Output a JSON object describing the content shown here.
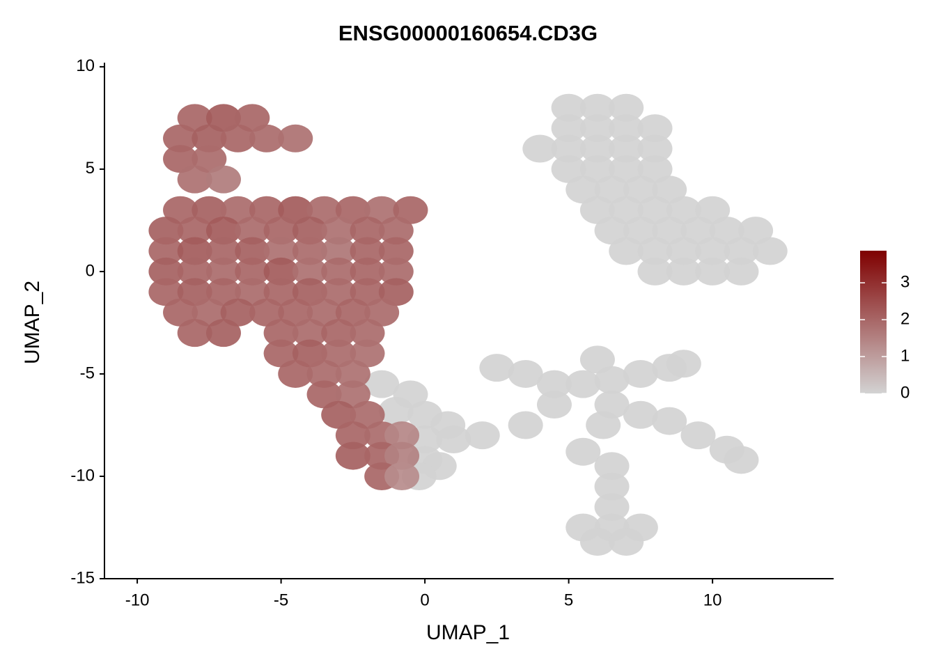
{
  "chart_data": {
    "type": "scatter",
    "title": "ENSG00000160654.CD3G",
    "xlabel": "UMAP_1",
    "ylabel": "UMAP_2",
    "xlim": [
      -11.14,
      14.21
    ],
    "ylim": [
      -15,
      10.2
    ],
    "xticks": [
      -10,
      -5,
      0,
      5,
      10
    ],
    "yticks": [
      -15,
      -10,
      -5,
      0,
      5,
      10
    ],
    "colorbar": {
      "lim": [
        0,
        3.87
      ],
      "ticks": [
        0,
        1,
        2,
        3
      ],
      "colors": [
        "#d3d3d3",
        "#7f0000"
      ]
    },
    "x": [
      5,
      6,
      7,
      5,
      6,
      7,
      8,
      4,
      5,
      6,
      7,
      8,
      5,
      6,
      7,
      8,
      5.5,
      6.5,
      7.5,
      8.5,
      6,
      7,
      8,
      9,
      10,
      6.5,
      7.5,
      8.5,
      9.5,
      10.5,
      11.5,
      7,
      8,
      9,
      10,
      11,
      12,
      8,
      9,
      10,
      11,
      5.5,
      6.5,
      7.5,
      6,
      7,
      6.5,
      6.5,
      6.5,
      2.5,
      3.5,
      4.5,
      5.5,
      6.5,
      7.5,
      8.5,
      9,
      6,
      6.5,
      6.2,
      7.5,
      8.5,
      9.5,
      10.5,
      11,
      4.5,
      3.5,
      2,
      5.5,
      -1.5,
      -0.5,
      -1,
      0,
      0.8,
      0,
      1,
      0,
      0.5,
      -0.2,
      -8,
      -7,
      -6,
      -8.5,
      -7.5,
      -6.5,
      -5.5,
      -4.5,
      -8.5,
      -7.5,
      -8,
      -7,
      -8.5,
      -7.5,
      -6.5,
      -5.5,
      -4.5,
      -3.5,
      -2.5,
      -1.5,
      -0.5,
      -9,
      -8,
      -7,
      -6,
      -5,
      -4,
      -3,
      -2,
      -1,
      -9,
      -8,
      -7,
      -6,
      -5,
      -4,
      -3,
      -2,
      -1,
      -9,
      -8,
      -7,
      -6,
      -5,
      -4,
      -3,
      -2,
      -1,
      -9,
      -8,
      -7,
      -6,
      -5,
      -4,
      -3,
      -2,
      -1,
      -8.5,
      -7.5,
      -6.5,
      -5.5,
      -4.5,
      -3.5,
      -2.5,
      -1.5,
      -8,
      -7,
      -5,
      -4,
      -3,
      -2,
      -5,
      -4,
      -3,
      -2,
      -4.5,
      -3.5,
      -2.5,
      -3.5,
      -2.5,
      -3,
      -2,
      -2.5,
      -1.5,
      -0.8,
      -2.5,
      -1.5,
      -0.8,
      -1.5,
      -0.8
    ],
    "y": [
      8,
      8,
      8,
      7,
      7,
      7,
      7,
      6,
      6,
      6,
      6,
      6,
      5,
      5,
      5,
      5,
      4,
      4,
      4,
      4,
      3,
      3,
      3,
      3,
      3,
      2,
      2,
      2,
      2,
      2,
      2,
      1,
      1,
      1,
      1,
      1,
      1,
      0,
      0,
      0,
      0,
      -12.5,
      -12.5,
      -12.5,
      -13.2,
      -13.2,
      -11.5,
      -10.5,
      -9.5,
      -4.7,
      -5,
      -5.5,
      -5.5,
      -5.3,
      -5,
      -4.7,
      -4.5,
      -4.3,
      -6.5,
      -7.5,
      -7,
      -7.3,
      -8,
      -8.7,
      -9.2,
      -6.5,
      -7.5,
      -8,
      -8.8,
      -5.5,
      -6,
      -6.8,
      -7,
      -7.5,
      -8.2,
      -8.2,
      -9.2,
      -9.5,
      -10,
      7.5,
      7.5,
      7.5,
      6.5,
      6.5,
      6.5,
      6.5,
      6.5,
      5.5,
      5.5,
      4.5,
      4.5,
      3,
      3,
      3,
      3,
      3,
      3,
      3,
      3,
      3,
      2,
      2,
      2,
      2,
      2,
      2,
      2,
      2,
      2,
      1,
      1,
      1,
      1,
      1,
      1,
      1,
      1,
      1,
      0,
      0,
      0,
      0,
      0,
      0,
      0,
      0,
      0,
      -1,
      -1,
      -1,
      -1,
      -1,
      -1,
      -1,
      -1,
      -1,
      -2,
      -2,
      -2,
      -2,
      -2,
      -2,
      -2,
      -2,
      -3,
      -3,
      -3,
      -3,
      -3,
      -3,
      -4,
      -4,
      -4,
      -4,
      -5,
      -5,
      -5,
      -6,
      -6,
      -7,
      -7,
      -8,
      -8,
      -8,
      -9,
      -9,
      -9,
      -10,
      -10
    ],
    "values": [
      0,
      0,
      0,
      0,
      0,
      0,
      0,
      0,
      0,
      0,
      0,
      0,
      0,
      0,
      0,
      0,
      0,
      0,
      0,
      0,
      0,
      0,
      0,
      0,
      0,
      0,
      0,
      0,
      0,
      0,
      0,
      0,
      0,
      0,
      0,
      0,
      0,
      0,
      0,
      0,
      0,
      0,
      0,
      0,
      0,
      0,
      0,
      0,
      0,
      0,
      0,
      0,
      0,
      0,
      0,
      0,
      0,
      0,
      0,
      0,
      0,
      0,
      0,
      0,
      0,
      0,
      0,
      0,
      0,
      0,
      0,
      0,
      0,
      0,
      0,
      0,
      0,
      0,
      0,
      2,
      2.2,
      2,
      2,
      2.1,
      2,
      1.9,
      1.8,
      2,
      1.9,
      1.8,
      1.6,
      2,
      2.1,
      1.9,
      2,
      2.2,
      1.9,
      2,
      1.8,
      2,
      2.1,
      2,
      2.2,
      1.9,
      2,
      2.1,
      1.8,
      2,
      1.9,
      2,
      2.2,
      2,
      2.1,
      1.8,
      1.9,
      1.7,
      2,
      2,
      2.1,
      2,
      1.9,
      2,
      2.2,
      1.8,
      1.9,
      2,
      1.9,
      2,
      2.1,
      2,
      1.9,
      2,
      2.1,
      1.9,
      2,
      2.1,
      2,
      1.9,
      2.1,
      2,
      2,
      1.9,
      2,
      1.9,
      2,
      2.1,
      2,
      1.9,
      2,
      1.9,
      2,
      2.1,
      1.9,
      1.8,
      2,
      1.9,
      1.8,
      2,
      1.8,
      2.1,
      1.9,
      2,
      1.9,
      1.4,
      2.1,
      2,
      1.5,
      2,
      1.3
    ]
  }
}
